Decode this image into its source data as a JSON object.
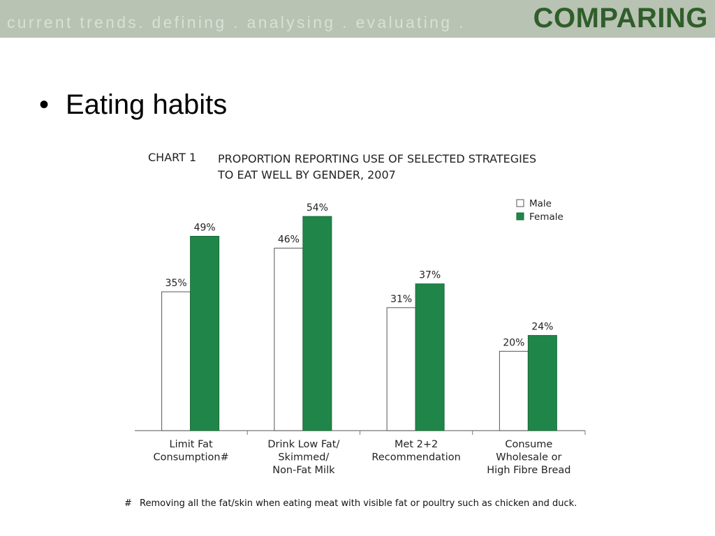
{
  "header": {
    "breadcrumb": "current  trends.  defining  .  analysing  .  evaluating  .",
    "title": "COMPARING"
  },
  "bullet": {
    "marker": "•",
    "text": "Eating habits"
  },
  "chart_data": {
    "type": "bar",
    "chart_number": "CHART 1",
    "title": "PROPORTION REPORTING USE OF SELECTED STRATEGIES TO EAT WELL BY GENDER, 2007",
    "title_lines": [
      "PROPORTION REPORTING USE OF SELECTED STRATEGIES",
      "TO EAT WELL BY GENDER, 2007"
    ],
    "categories": [
      [
        "Limit Fat",
        "Consumption#"
      ],
      [
        "Drink Low Fat/",
        "Skimmed/",
        "Non-Fat Milk"
      ],
      [
        "Met 2+2",
        "Recommendation"
      ],
      [
        "Consume",
        "Wholesale or",
        "High Fibre Bread"
      ]
    ],
    "series": [
      {
        "name": "Male",
        "values": [
          35,
          46,
          31,
          20
        ],
        "labels": [
          "35%",
          "46%",
          "31%",
          "20%"
        ],
        "color": "#ffffff"
      },
      {
        "name": "Female",
        "values": [
          49,
          54,
          37,
          24
        ],
        "labels": [
          "49%",
          "54%",
          "37%",
          "24%"
        ],
        "color": "#208549"
      }
    ],
    "ylim": [
      0,
      60
    ],
    "legend": "top-right",
    "grid": false,
    "xlabel": "",
    "ylabel": ""
  },
  "footnote": {
    "marker": "#",
    "text": "Removing all the fat/skin when eating meat with visible fat or poultry such as chicken and duck."
  },
  "colors": {
    "banner": "#b8c3b3",
    "title": "#2f5e2b",
    "female": "#208549",
    "outline": "#555555"
  }
}
